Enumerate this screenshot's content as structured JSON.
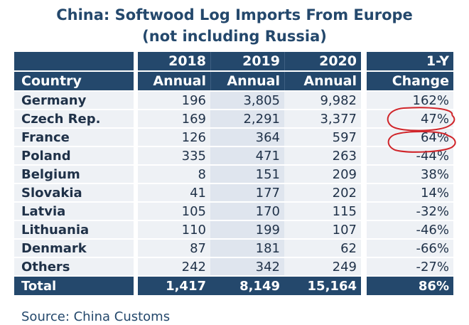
{
  "title_line1": "China: Softwood Log Imports From Europe",
  "title_line2": "(not including Russia)",
  "header": {
    "year_2018": "2018",
    "year_2019": "2019",
    "year_2020": "2020",
    "change_top": "1-Y",
    "country": "Country",
    "annual": "Annual",
    "change_bottom": "Change"
  },
  "rows": [
    {
      "country": "Germany",
      "y2018": "196",
      "y2019": "3,805",
      "y2020": "9,982",
      "change": "162%"
    },
    {
      "country": "Czech Rep.",
      "y2018": "169",
      "y2019": "2,291",
      "y2020": "3,377",
      "change": "47%"
    },
    {
      "country": "France",
      "y2018": "126",
      "y2019": "364",
      "y2020": "597",
      "change": "64%"
    },
    {
      "country": "Poland",
      "y2018": "335",
      "y2019": "471",
      "y2020": "263",
      "change": "-44%"
    },
    {
      "country": "Belgium",
      "y2018": "8",
      "y2019": "151",
      "y2020": "209",
      "change": "38%"
    },
    {
      "country": "Slovakia",
      "y2018": "41",
      "y2019": "177",
      "y2020": "202",
      "change": "14%"
    },
    {
      "country": "Latvia",
      "y2018": "105",
      "y2019": "170",
      "y2020": "115",
      "change": "-32%"
    },
    {
      "country": "Lithuania",
      "y2018": "110",
      "y2019": "199",
      "y2020": "107",
      "change": "-46%"
    },
    {
      "country": "Denmark",
      "y2018": "87",
      "y2019": "181",
      "y2020": "62",
      "change": "-66%"
    },
    {
      "country": "Others",
      "y2018": "242",
      "y2019": "342",
      "y2020": "249",
      "change": "-27%"
    }
  ],
  "total": {
    "country": "Total",
    "y2018": "1,417",
    "y2019": "8,149",
    "y2020": "15,164",
    "change": "86%"
  },
  "source": "Source: China Customs",
  "annotation_color": "#d0252a",
  "chart_data": {
    "type": "table",
    "title": "China: Softwood Log Imports From Europe (not including Russia)",
    "columns": [
      "Country",
      "2018 Annual",
      "2019 Annual",
      "2020 Annual",
      "1-Y Change"
    ],
    "categories": [
      "Germany",
      "Czech Rep.",
      "France",
      "Poland",
      "Belgium",
      "Slovakia",
      "Latvia",
      "Lithuania",
      "Denmark",
      "Others"
    ],
    "series": [
      {
        "name": "2018",
        "values": [
          196,
          169,
          126,
          335,
          8,
          41,
          105,
          110,
          87,
          242
        ]
      },
      {
        "name": "2019",
        "values": [
          3805,
          2291,
          364,
          471,
          151,
          177,
          170,
          199,
          181,
          342
        ]
      },
      {
        "name": "2020",
        "values": [
          9982,
          3377,
          597,
          263,
          209,
          202,
          115,
          107,
          62,
          249
        ]
      },
      {
        "name": "1-Y Change (%)",
        "values": [
          162,
          47,
          64,
          -44,
          38,
          14,
          -32,
          -46,
          -66,
          -27
        ]
      }
    ],
    "totals": {
      "2018": 1417,
      "2019": 8149,
      "2020": 15164,
      "change_pct": 86
    },
    "annotations": [
      "red circles around Czech Rep. 47% and France 64%"
    ]
  }
}
